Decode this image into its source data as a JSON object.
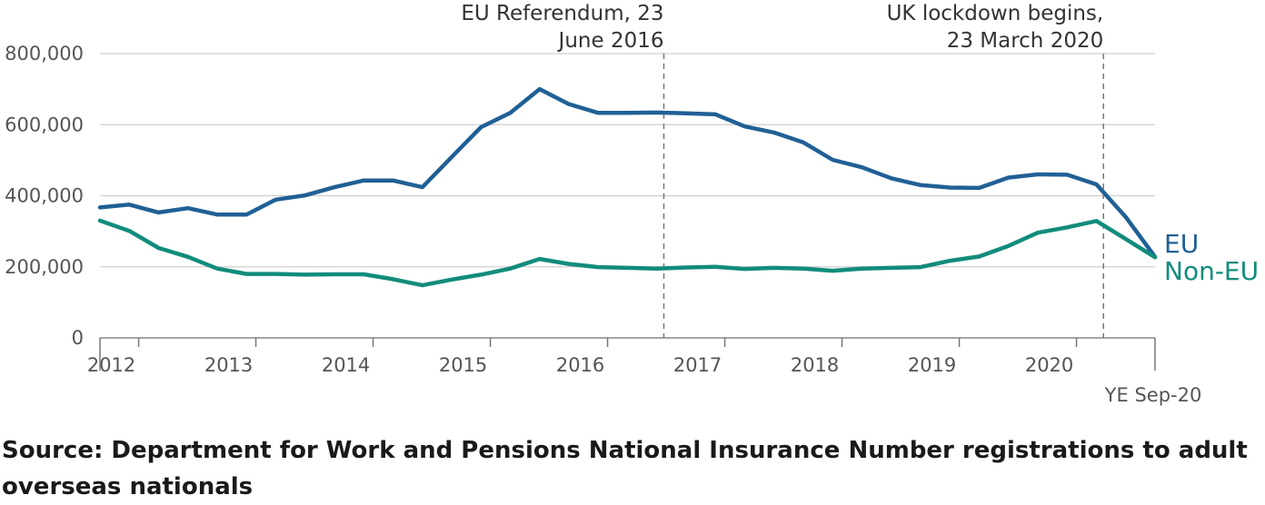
{
  "chart_data": {
    "type": "line",
    "title": "",
    "xlabel": "",
    "ylabel": "",
    "ylim": [
      0,
      800000
    ],
    "yticks": [
      0,
      200000,
      400000,
      600000,
      800000
    ],
    "ytick_labels": [
      "0",
      "200,000",
      "400,000",
      "600,000",
      "800,000"
    ],
    "xticks": [
      2012,
      2013,
      2014,
      2015,
      2016,
      2017,
      2018,
      2019,
      2020
    ],
    "xtick_labels": [
      "2012",
      "2013",
      "2014",
      "2015",
      "2016",
      "2017",
      "2018",
      "2019",
      "2020"
    ],
    "xlim": [
      2011.67,
      2020.67
    ],
    "end_label": "YE Sep-20",
    "grid": true,
    "x": [
      2011.67,
      2011.92,
      2012.17,
      2012.42,
      2012.67,
      2012.92,
      2013.17,
      2013.42,
      2013.67,
      2013.92,
      2014.17,
      2014.42,
      2014.67,
      2014.92,
      2015.17,
      2015.42,
      2015.67,
      2015.92,
      2016.17,
      2016.42,
      2016.67,
      2016.92,
      2017.17,
      2017.42,
      2017.67,
      2017.92,
      2018.17,
      2018.42,
      2018.67,
      2018.92,
      2019.17,
      2019.42,
      2019.67,
      2019.92,
      2020.17,
      2020.42,
      2020.67
    ],
    "series": [
      {
        "name": "EU",
        "color": "#206095",
        "values": [
          367000,
          375000,
          353000,
          365000,
          347000,
          347000,
          389000,
          401000,
          424000,
          443000,
          443000,
          424000,
          509000,
          593000,
          633000,
          700000,
          658000,
          633000,
          633000,
          634000,
          632000,
          629000,
          595000,
          578000,
          550000,
          501000,
          480000,
          449000,
          430000,
          423000,
          422000,
          451000,
          460000,
          459000,
          432000,
          340000,
          228000
        ]
      },
      {
        "name": "Non-EU",
        "color": "#118C7B",
        "values": [
          330000,
          301000,
          253000,
          228000,
          195000,
          180000,
          180000,
          178000,
          179000,
          179000,
          165000,
          148000,
          164000,
          178000,
          195000,
          222000,
          208000,
          199000,
          197000,
          195000,
          198000,
          200000,
          194000,
          197000,
          195000,
          189000,
          195000,
          197000,
          199000,
          217000,
          229000,
          259000,
          296000,
          311000,
          329000,
          278000,
          227000
        ]
      }
    ],
    "annotations": [
      {
        "x": 2016.48,
        "lines": [
          "EU Referendum, 23",
          "June 2016"
        ]
      },
      {
        "x": 2020.23,
        "lines": [
          "UK lockdown begins,",
          "23 March 2020"
        ]
      }
    ]
  },
  "source": "Source: Department for Work and Pensions National Insurance Number registrations to adult overseas nationals"
}
